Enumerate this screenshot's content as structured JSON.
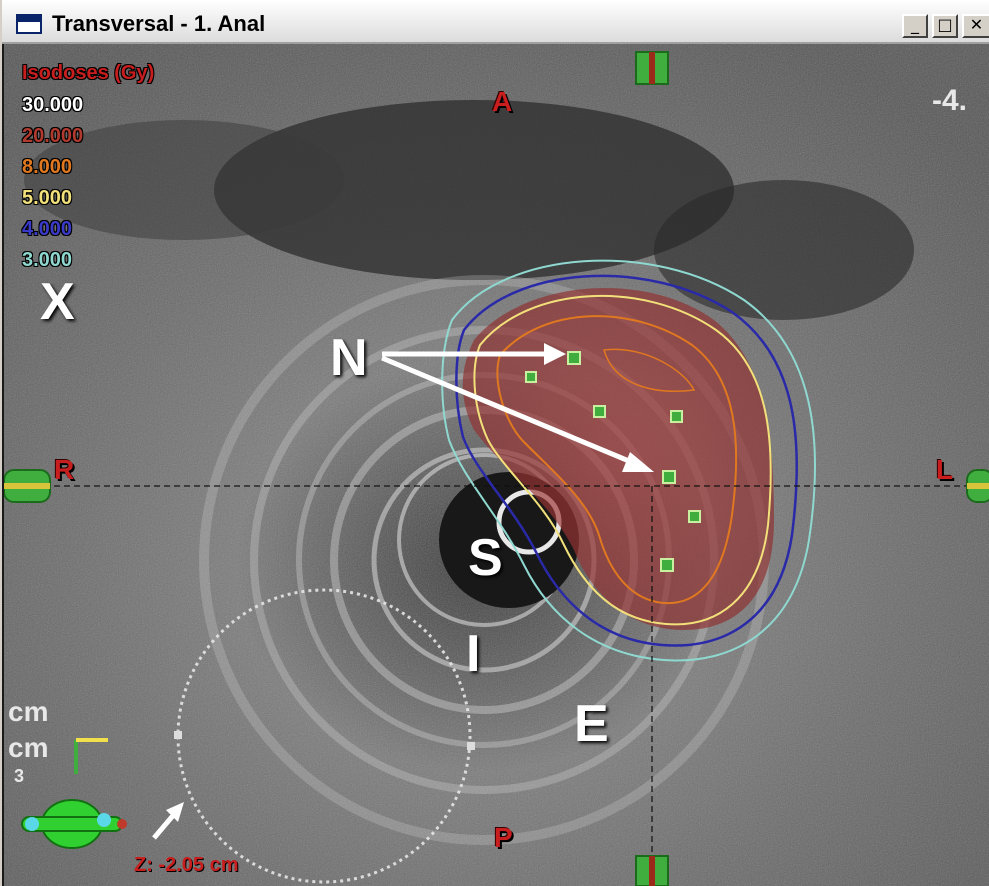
{
  "window": {
    "title": "Transversal - 1. Anal",
    "buttons": {
      "minimize": "_",
      "maximize": "□",
      "close": "✕"
    }
  },
  "viewer": {
    "isodose_header": "Isodoses (Gy)",
    "isodoses": [
      {
        "label": "30.000",
        "color": "#ffffff"
      },
      {
        "label": "20.000",
        "color": "#b03a2e"
      },
      {
        "label": "8.000",
        "color": "#e07820"
      },
      {
        "label": "5.000",
        "color": "#f2e07a"
      },
      {
        "label": "4.000",
        "color": "#2a2aa8"
      },
      {
        "label": "3.000",
        "color": "#8fd8d0"
      }
    ],
    "orientation": {
      "anterior": "A",
      "posterior": "P",
      "right": "R",
      "left": "L"
    },
    "corner_value": "-4.",
    "z_position": "Z: -2.05 cm",
    "unit_labels": [
      "cm",
      "cm",
      "3"
    ],
    "annotations": {
      "x": "X",
      "n": "N",
      "s": "S",
      "i": "I",
      "e": "E"
    },
    "colors": {
      "accent_red": "#c81e1e",
      "marker_green": "#3fae3f"
    }
  }
}
